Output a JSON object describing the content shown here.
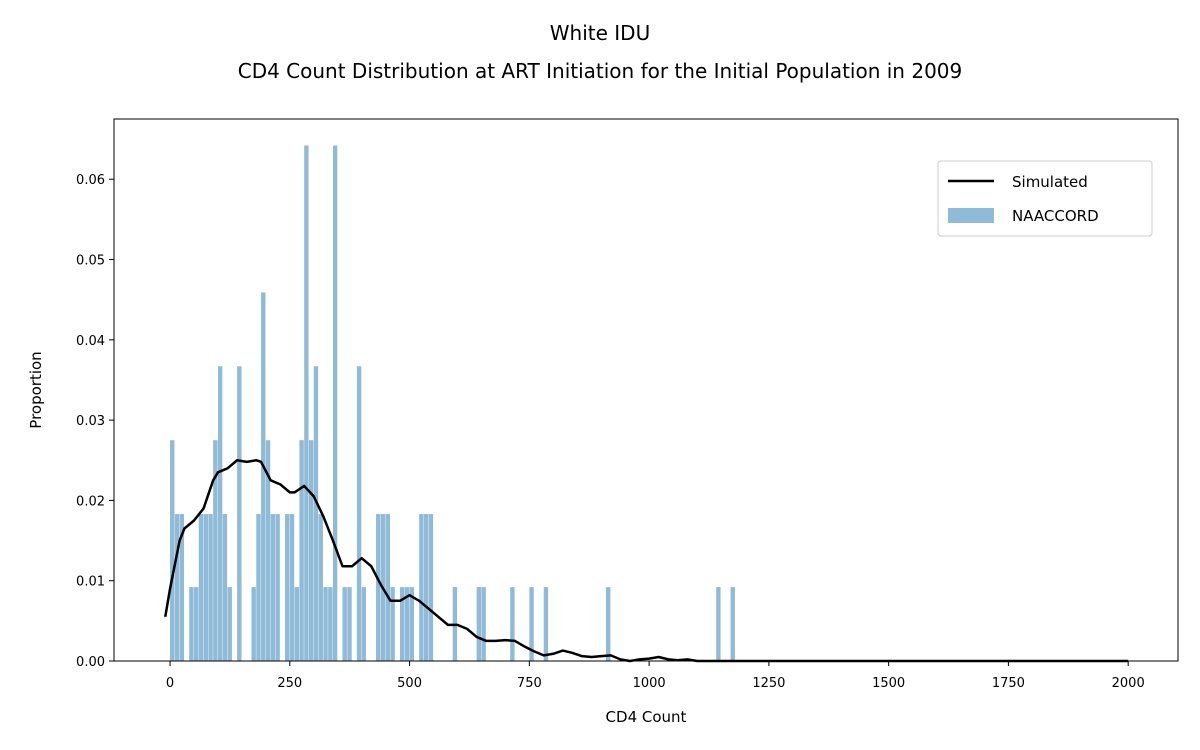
{
  "chart_data": {
    "type": "histogram",
    "title": "White IDU",
    "subtitle": "CD4 Count Distribution at ART Initiation for the Initial Population in 2009",
    "x_label": "CD4 Count",
    "y_label": "Proportion",
    "xlim": [
      -117,
      2104
    ],
    "ylim": [
      0,
      0.0675
    ],
    "xticks": [
      0,
      250,
      500,
      750,
      1000,
      1250,
      1500,
      1750,
      2000
    ],
    "yticks": [
      {
        "value": 0,
        "label": "0.00"
      },
      {
        "value": 0.01,
        "label": "0.01"
      },
      {
        "value": 0.02,
        "label": "0.02"
      },
      {
        "value": 0.03,
        "label": "0.03"
      },
      {
        "value": 0.04,
        "label": "0.04"
      },
      {
        "value": 0.05,
        "label": "0.05"
      },
      {
        "value": 0.06,
        "label": "0.06"
      }
    ],
    "legend": "upper right",
    "bins": [
      0,
      10,
      20,
      30,
      40,
      50,
      60,
      70,
      80,
      90,
      100,
      110,
      120,
      130,
      140,
      150,
      160,
      170,
      180,
      190,
      200,
      210,
      220,
      230,
      240,
      250,
      260,
      270,
      280,
      290,
      300,
      310,
      320,
      330,
      340,
      350,
      360,
      370,
      380,
      390,
      400,
      410,
      420,
      430,
      440,
      450,
      460,
      470,
      480,
      490,
      500,
      510,
      520,
      530,
      540,
      550,
      560,
      570,
      580,
      590,
      600,
      610,
      620,
      630,
      640,
      650,
      660,
      670,
      680,
      690,
      700,
      710,
      720,
      730,
      740,
      750,
      760,
      770,
      780,
      790,
      800,
      810,
      820,
      830,
      840,
      850,
      860,
      870,
      880,
      890,
      900,
      910,
      920,
      930,
      940,
      950,
      960,
      970,
      980,
      990,
      1000,
      1010,
      1020,
      1030,
      1040,
      1050,
      1060,
      1070,
      1080,
      1090,
      1100,
      1110,
      1120,
      1130,
      1140,
      1150,
      1160,
      1170,
      1180,
      1190
    ],
    "series": [
      {
        "name": "Simulated",
        "type": "line",
        "color": "#000000",
        "x": [
          -10,
          0,
          20,
          30,
          50,
          70,
          90,
          100,
          120,
          140,
          160,
          180,
          190,
          210,
          230,
          250,
          260,
          280,
          300,
          320,
          340,
          360,
          380,
          400,
          420,
          440,
          460,
          480,
          500,
          520,
          540,
          560,
          580,
          600,
          620,
          640,
          660,
          680,
          700,
          720,
          740,
          760,
          780,
          800,
          820,
          840,
          860,
          880,
          900,
          920,
          940,
          960,
          980,
          1000,
          1020,
          1040,
          1060,
          1080,
          1100,
          1200,
          2000
        ],
        "values": [
          0.0055,
          0.009,
          0.015,
          0.0165,
          0.0175,
          0.019,
          0.0225,
          0.0235,
          0.024,
          0.025,
          0.0248,
          0.025,
          0.0248,
          0.0225,
          0.022,
          0.021,
          0.021,
          0.0218,
          0.0205,
          0.018,
          0.015,
          0.0118,
          0.0118,
          0.0128,
          0.0118,
          0.0095,
          0.0075,
          0.0075,
          0.0082,
          0.0075,
          0.0065,
          0.0055,
          0.0045,
          0.0045,
          0.004,
          0.003,
          0.0025,
          0.0025,
          0.0026,
          0.0025,
          0.0018,
          0.0012,
          0.0007,
          0.0009,
          0.0013,
          0.001,
          0.0006,
          0.0005,
          0.0006,
          0.0007,
          0.0002,
          0,
          0.0002,
          0.0003,
          0.0005,
          0.0002,
          0.0001,
          0.0002,
          0,
          0,
          0
        ]
      },
      {
        "name": "NAACCORD",
        "type": "histogram",
        "color": "#8fbbd9",
        "values": [
          0.0275,
          0.0183,
          0.0183,
          0,
          0.0092,
          0.0092,
          0.0183,
          0.0183,
          0.0183,
          0.0275,
          0.0367,
          0.0183,
          0.0092,
          0,
          0.0367,
          0,
          0,
          0.0092,
          0.0183,
          0.0459,
          0.0275,
          0.0183,
          0.0183,
          0,
          0.0183,
          0.0183,
          0.0092,
          0.0275,
          0.0642,
          0.0275,
          0.0367,
          0.0183,
          0.0092,
          0.0092,
          0.0642,
          0,
          0.0092,
          0.0092,
          0,
          0.0367,
          0.0092,
          0,
          0,
          0.0183,
          0.0183,
          0.0183,
          0.0092,
          0,
          0.0092,
          0.0092,
          0.0092,
          0,
          0.0183,
          0.0183,
          0.0183,
          0,
          0,
          0,
          0,
          0.0092,
          0,
          0,
          0,
          0,
          0.0092,
          0.0092,
          0,
          0,
          0,
          0,
          0,
          0.0092,
          0,
          0,
          0,
          0.0092,
          0,
          0,
          0.0092,
          0,
          0,
          0,
          0,
          0,
          0,
          0,
          0,
          0,
          0,
          0,
          0,
          0.0092,
          0,
          0,
          0,
          0,
          0,
          0,
          0,
          0,
          0,
          0,
          0,
          0,
          0,
          0,
          0,
          0,
          0,
          0,
          0,
          0,
          0,
          0,
          0.0092,
          0,
          0,
          0.0092,
          0
        ]
      }
    ]
  }
}
